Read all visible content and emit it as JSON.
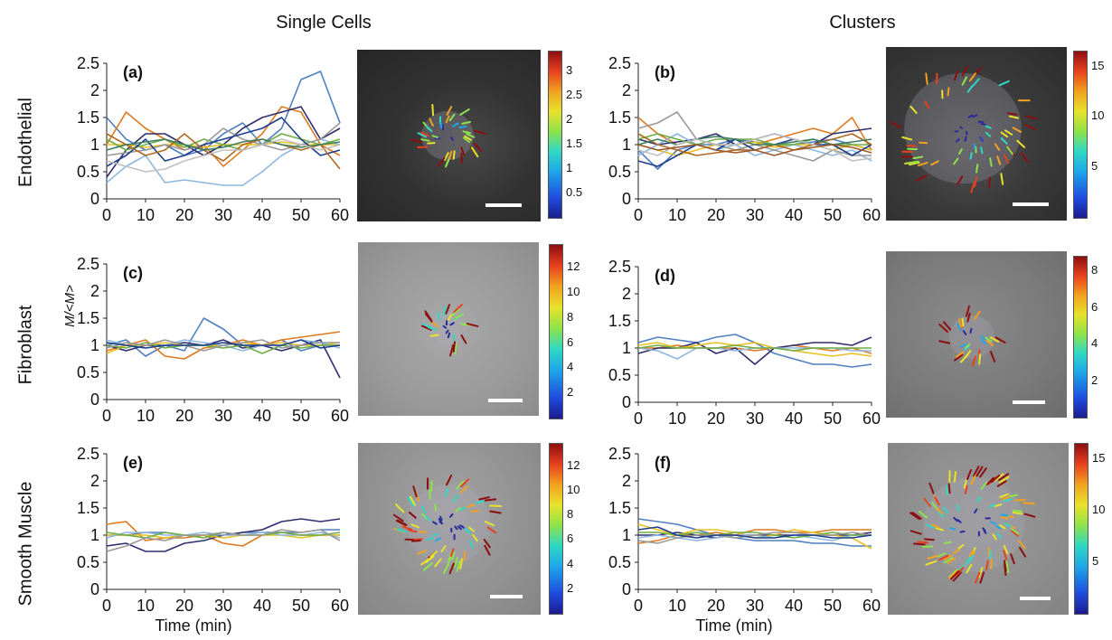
{
  "columns": [
    "Single Cells",
    "Clusters"
  ],
  "rows": [
    "Endothelial",
    "Fibroblast",
    "Smooth Muscle"
  ],
  "shared_ylabel": "M/<M>",
  "xlabel": "Time (min)",
  "colors": [
    "#4f7fc0",
    "#e07a1f",
    "#2f2f6f",
    "#e8c020",
    "#8fb8e0",
    "#6fae45",
    "#9a9a9a",
    "#1f3f8f",
    "#b06a20",
    "#3f7f5f",
    "#c0c0c0",
    "#a05a2a"
  ],
  "chart_data": [
    {
      "type": "line",
      "label": "(a)",
      "xlim": [
        0,
        60
      ],
      "ylim": [
        0,
        2.5
      ],
      "xticks": [
        "0",
        "10",
        "20",
        "30",
        "40",
        "50",
        "60"
      ],
      "yticks": [
        "0",
        "0.5",
        "1",
        "1.5",
        "2",
        "2.5"
      ],
      "x": [
        0,
        5,
        10,
        15,
        20,
        25,
        30,
        35,
        40,
        45,
        50,
        55,
        60
      ],
      "series": [
        {
          "values": [
            1.5,
            1.1,
            0.9,
            1.0,
            0.8,
            0.9,
            1.2,
            1.4,
            1.0,
            1.3,
            2.2,
            2.35,
            1.4
          ]
        },
        {
          "values": [
            1.0,
            1.6,
            1.3,
            1.1,
            0.9,
            1.0,
            0.6,
            0.9,
            1.2,
            1.7,
            1.6,
            1.0,
            0.8
          ]
        },
        {
          "values": [
            0.4,
            0.9,
            1.2,
            1.2,
            1.0,
            0.8,
            1.0,
            1.3,
            1.5,
            1.6,
            1.7,
            1.1,
            1.3
          ]
        },
        {
          "values": [
            1.0,
            1.0,
            0.95,
            1.0,
            1.0,
            0.95,
            1.0,
            1.0,
            1.0,
            1.05,
            1.0,
            1.0,
            1.0
          ]
        },
        {
          "values": [
            0.3,
            0.6,
            0.8,
            0.3,
            0.35,
            0.3,
            0.25,
            0.25,
            0.5,
            0.8,
            1.0,
            1.1,
            1.0
          ]
        },
        {
          "values": [
            1.1,
            0.9,
            1.0,
            1.1,
            0.95,
            1.1,
            1.0,
            0.9,
            1.0,
            1.2,
            1.1,
            1.0,
            1.1
          ]
        },
        {
          "values": [
            0.8,
            0.85,
            0.9,
            1.0,
            0.9,
            1.0,
            1.3,
            1.1,
            1.0,
            0.9,
            1.0,
            1.1,
            1.4
          ]
        },
        {
          "values": [
            0.6,
            0.8,
            1.1,
            0.7,
            0.8,
            1.0,
            1.1,
            1.2,
            1.3,
            1.5,
            1.1,
            0.8,
            0.9
          ]
        },
        {
          "values": [
            1.2,
            1.0,
            0.8,
            0.9,
            1.2,
            0.9,
            0.7,
            1.0,
            1.1,
            1.0,
            0.9,
            1.0,
            0.55
          ]
        },
        {
          "values": [
            0.9,
            1.0,
            1.05,
            1.1,
            1.0,
            0.9,
            0.95,
            1.05,
            1.1,
            1.0,
            0.95,
            1.0,
            1.05
          ]
        },
        {
          "values": [
            0.7,
            0.6,
            0.5,
            0.55,
            0.7,
            0.8,
            0.9,
            0.9,
            1.0,
            1.1,
            1.0,
            0.9,
            1.0
          ]
        }
      ]
    },
    {
      "type": "line",
      "label": "(b)",
      "xlim": [
        0,
        60
      ],
      "ylim": [
        0,
        2.5
      ],
      "xticks": [
        "0",
        "10",
        "20",
        "30",
        "40",
        "50",
        "60"
      ],
      "yticks": [
        "0",
        "0.5",
        "1",
        "1.5",
        "2",
        "2.5"
      ],
      "x": [
        0,
        5,
        10,
        15,
        20,
        25,
        30,
        35,
        40,
        45,
        50,
        55,
        60
      ],
      "series": [
        {
          "values": [
            0.9,
            0.55,
            0.9,
            1.0,
            1.0,
            1.1,
            1.05,
            1.0,
            1.0,
            1.05,
            1.1,
            1.0,
            0.9
          ]
        },
        {
          "values": [
            1.5,
            1.2,
            1.0,
            1.1,
            1.0,
            0.9,
            1.0,
            1.1,
            1.2,
            1.3,
            1.2,
            1.5,
            0.9
          ]
        },
        {
          "values": [
            1.1,
            1.0,
            1.05,
            1.1,
            1.2,
            1.0,
            1.1,
            1.2,
            1.1,
            1.0,
            1.2,
            1.25,
            1.3
          ]
        },
        {
          "values": [
            1.0,
            0.9,
            0.8,
            0.9,
            1.0,
            1.0,
            1.05,
            0.95,
            1.0,
            1.0,
            0.9,
            1.0,
            0.9
          ]
        },
        {
          "values": [
            0.8,
            1.0,
            1.2,
            1.0,
            0.9,
            1.0,
            0.8,
            0.9,
            1.0,
            0.9,
            0.8,
            0.9,
            0.7
          ]
        },
        {
          "values": [
            1.1,
            1.2,
            1.1,
            1.0,
            1.1,
            1.1,
            1.1,
            1.0,
            1.0,
            1.1,
            1.0,
            1.0,
            1.0
          ]
        },
        {
          "values": [
            1.3,
            1.4,
            1.6,
            1.1,
            1.0,
            0.9,
            1.0,
            0.9,
            0.8,
            0.7,
            0.9,
            0.8,
            0.8
          ]
        },
        {
          "values": [
            0.7,
            0.6,
            0.8,
            1.0,
            0.9,
            1.1,
            0.9,
            1.0,
            1.1,
            1.0,
            1.0,
            0.8,
            1.0
          ]
        },
        {
          "values": [
            1.2,
            1.0,
            0.9,
            0.8,
            0.85,
            0.9,
            0.9,
            1.0,
            0.9,
            1.0,
            1.1,
            1.2,
            1.0
          ]
        },
        {
          "values": [
            1.0,
            1.1,
            1.0,
            1.1,
            1.15,
            1.1,
            1.0,
            1.0,
            1.05,
            1.1,
            1.0,
            1.05,
            1.1
          ]
        },
        {
          "values": [
            0.9,
            0.8,
            1.0,
            1.1,
            1.0,
            1.0,
            1.1,
            1.2,
            1.1,
            1.0,
            0.9,
            0.7,
            0.75
          ]
        },
        {
          "values": [
            1.0,
            0.9,
            0.95,
            1.0,
            0.9,
            0.85,
            0.9,
            0.8,
            0.9,
            0.95,
            1.0,
            0.95,
            0.85
          ]
        }
      ]
    },
    {
      "type": "line",
      "label": "(c)",
      "xlim": [
        0,
        60
      ],
      "ylim": [
        0,
        2.5
      ],
      "xticks": [
        "0",
        "10",
        "20",
        "30",
        "40",
        "50",
        "60"
      ],
      "yticks": [
        "0",
        "0.5",
        "1",
        "1.5",
        "2",
        "2.5"
      ],
      "x": [
        0,
        5,
        10,
        15,
        20,
        25,
        30,
        35,
        40,
        45,
        50,
        55,
        60
      ],
      "series": [
        {
          "values": [
            1.0,
            1.1,
            0.8,
            1.0,
            0.9,
            1.5,
            1.3,
            1.0,
            1.0,
            1.1,
            0.9,
            1.0,
            1.0
          ]
        },
        {
          "values": [
            0.9,
            1.0,
            1.1,
            0.8,
            0.75,
            0.95,
            1.0,
            1.1,
            1.0,
            1.1,
            1.15,
            1.2,
            1.25
          ]
        },
        {
          "values": [
            1.0,
            0.9,
            1.0,
            1.0,
            1.05,
            1.0,
            1.1,
            0.95,
            1.0,
            0.9,
            1.0,
            1.1,
            0.4
          ]
        },
        {
          "values": [
            0.85,
            1.0,
            1.0,
            1.05,
            1.0,
            1.0,
            1.0,
            1.05,
            1.0,
            1.05,
            1.0,
            1.0,
            1.05
          ]
        },
        {
          "values": [
            1.1,
            1.0,
            0.95,
            1.0,
            1.1,
            1.05,
            1.0,
            0.9,
            1.0,
            1.0,
            1.1,
            1.05,
            0.95
          ]
        },
        {
          "values": [
            1.0,
            0.95,
            1.05,
            0.95,
            1.0,
            1.0,
            0.95,
            1.0,
            0.85,
            1.0,
            0.95,
            1.0,
            1.0
          ]
        },
        {
          "values": [
            0.95,
            1.05,
            1.0,
            1.1,
            1.0,
            0.9,
            1.0,
            1.05,
            1.1,
            0.95,
            1.0,
            1.05,
            1.05
          ]
        },
        {
          "values": [
            1.05,
            1.0,
            0.95,
            1.0,
            1.0,
            1.0,
            1.05,
            1.0,
            1.0,
            1.0,
            1.1,
            0.95,
            1.0
          ]
        }
      ]
    },
    {
      "type": "line",
      "label": "(d)",
      "xlim": [
        0,
        60
      ],
      "ylim": [
        0,
        2.5
      ],
      "xticks": [
        "0",
        "10",
        "20",
        "30",
        "40",
        "50",
        "60"
      ],
      "yticks": [
        "0",
        "0.5",
        "1",
        "1.5",
        "2",
        "2.5"
      ],
      "x": [
        0,
        5,
        10,
        15,
        20,
        25,
        30,
        35,
        40,
        45,
        50,
        55,
        60
      ],
      "series": [
        {
          "values": [
            1.1,
            1.2,
            1.15,
            1.1,
            1.2,
            1.25,
            1.1,
            0.9,
            0.8,
            0.7,
            0.7,
            0.65,
            0.7
          ]
        },
        {
          "values": [
            1.0,
            1.0,
            1.05,
            1.0,
            1.0,
            1.0,
            0.95,
            1.0,
            1.05,
            1.0,
            0.95,
            1.0,
            0.9
          ]
        },
        {
          "values": [
            0.9,
            1.0,
            1.0,
            1.1,
            0.9,
            1.0,
            0.7,
            1.0,
            1.05,
            1.1,
            1.1,
            1.05,
            1.2
          ]
        },
        {
          "values": [
            1.05,
            1.1,
            1.0,
            1.05,
            1.1,
            1.05,
            1.1,
            1.0,
            0.95,
            0.9,
            0.85,
            0.9,
            0.85
          ]
        },
        {
          "values": [
            1.0,
            0.95,
            0.8,
            1.0,
            1.0,
            0.95,
            1.0,
            1.0,
            1.0,
            1.0,
            1.0,
            0.95,
            0.95
          ]
        },
        {
          "values": [
            1.0,
            1.05,
            1.0,
            1.0,
            1.0,
            1.05,
            1.0,
            1.0,
            0.95,
            1.0,
            1.0,
            1.0,
            1.0
          ]
        }
      ]
    },
    {
      "type": "line",
      "label": "(e)",
      "xlim": [
        0,
        60
      ],
      "ylim": [
        0,
        2.5
      ],
      "xticks": [
        "0",
        "10",
        "20",
        "30",
        "40",
        "50",
        "60"
      ],
      "yticks": [
        "0",
        "0.5",
        "1",
        "1.5",
        "2",
        "2.5"
      ],
      "x": [
        0,
        5,
        10,
        15,
        20,
        25,
        30,
        35,
        40,
        45,
        50,
        55,
        60
      ],
      "series": [
        {
          "values": [
            1.0,
            1.0,
            1.05,
            1.05,
            1.0,
            1.0,
            1.0,
            1.05,
            1.05,
            1.05,
            1.05,
            1.1,
            1.1
          ]
        },
        {
          "values": [
            1.2,
            1.25,
            0.9,
            0.95,
            0.95,
            1.0,
            0.85,
            0.8,
            1.0,
            1.05,
            1.0,
            1.0,
            1.0
          ]
        },
        {
          "values": [
            0.8,
            0.85,
            0.7,
            0.7,
            0.85,
            0.9,
            1.0,
            1.05,
            1.1,
            1.25,
            1.3,
            1.25,
            1.3
          ]
        },
        {
          "values": [
            1.0,
            1.0,
            1.0,
            0.95,
            1.0,
            1.0,
            0.95,
            1.0,
            1.0,
            1.0,
            0.95,
            1.0,
            1.0
          ]
        },
        {
          "values": [
            0.95,
            1.05,
            1.05,
            1.0,
            1.0,
            1.05,
            1.0,
            1.0,
            1.05,
            1.0,
            1.0,
            1.05,
            0.95
          ]
        },
        {
          "values": [
            1.05,
            1.0,
            0.95,
            1.05,
            1.0,
            0.95,
            1.05,
            1.0,
            1.0,
            1.05,
            1.0,
            1.0,
            1.05
          ]
        },
        {
          "values": [
            0.7,
            0.8,
            0.95,
            0.9,
            1.0,
            1.0,
            1.05,
            1.0,
            1.0,
            1.1,
            1.05,
            1.1,
            0.9
          ]
        }
      ]
    },
    {
      "type": "line",
      "label": "(f)",
      "xlim": [
        0,
        60
      ],
      "ylim": [
        0,
        2.5
      ],
      "xticks": [
        "0",
        "10",
        "20",
        "30",
        "40",
        "50",
        "60"
      ],
      "yticks": [
        "0",
        "0.5",
        "1",
        "1.5",
        "2",
        "2.5"
      ],
      "x": [
        0,
        5,
        10,
        15,
        20,
        25,
        30,
        35,
        40,
        45,
        50,
        55,
        60
      ],
      "series": [
        {
          "values": [
            1.3,
            1.25,
            1.2,
            1.1,
            1.0,
            0.95,
            0.9,
            0.9,
            0.9,
            0.85,
            0.85,
            0.8,
            0.8
          ]
        },
        {
          "values": [
            0.85,
            0.9,
            1.0,
            1.0,
            1.05,
            1.0,
            1.1,
            1.1,
            1.05,
            1.05,
            1.1,
            1.1,
            1.1
          ]
        },
        {
          "values": [
            1.0,
            1.0,
            1.05,
            1.0,
            0.95,
            1.0,
            1.0,
            1.0,
            1.0,
            1.0,
            1.0,
            1.0,
            1.05
          ]
        },
        {
          "values": [
            1.2,
            1.1,
            1.0,
            1.1,
            1.1,
            1.05,
            0.95,
            1.0,
            1.1,
            1.05,
            1.0,
            0.95,
            0.75
          ]
        },
        {
          "values": [
            0.95,
            1.0,
            0.95,
            0.9,
            0.95,
            1.0,
            1.0,
            0.95,
            1.0,
            0.95,
            0.9,
            1.0,
            1.0
          ]
        },
        {
          "values": [
            1.05,
            1.05,
            1.0,
            1.05,
            1.0,
            1.05,
            1.05,
            1.0,
            0.95,
            1.0,
            1.05,
            1.0,
            1.0
          ]
        },
        {
          "values": [
            0.9,
            0.85,
            0.95,
            1.0,
            1.0,
            0.95,
            1.0,
            1.05,
            1.05,
            1.0,
            1.0,
            1.05,
            1.0
          ]
        },
        {
          "values": [
            1.1,
            1.15,
            1.0,
            0.95,
            1.0,
            1.0,
            0.95,
            0.95,
            1.0,
            1.0,
            0.95,
            0.95,
            1.0
          ]
        }
      ]
    }
  ],
  "colorbars": [
    {
      "ticks": [
        "3",
        "2.5",
        "2",
        "1.5",
        "1",
        "0.5"
      ],
      "min": 0,
      "max": 3.4,
      "values": [
        3,
        2.5,
        2,
        1.5,
        1,
        0.5
      ]
    },
    {
      "ticks": [
        "15",
        "10",
        "5"
      ],
      "min": 0,
      "max": 16.5,
      "values": [
        15,
        10,
        5
      ]
    },
    {
      "ticks": [
        "12",
        "10",
        "8",
        "6",
        "4",
        "2"
      ],
      "min": 0,
      "max": 13.8,
      "values": [
        12,
        10,
        8,
        6,
        4,
        2
      ]
    },
    {
      "ticks": [
        "8",
        "6",
        "4",
        "2"
      ],
      "min": 0,
      "max": 8.8,
      "values": [
        8,
        6,
        4,
        2
      ]
    },
    {
      "ticks": [
        "12",
        "10",
        "8",
        "6",
        "4",
        "2"
      ],
      "min": 0,
      "max": 13.8,
      "values": [
        12,
        10,
        8,
        6,
        4,
        2
      ]
    },
    {
      "ticks": [
        "15",
        "10",
        "5"
      ],
      "min": 0,
      "max": 16.5,
      "values": [
        15,
        10,
        5
      ]
    }
  ]
}
